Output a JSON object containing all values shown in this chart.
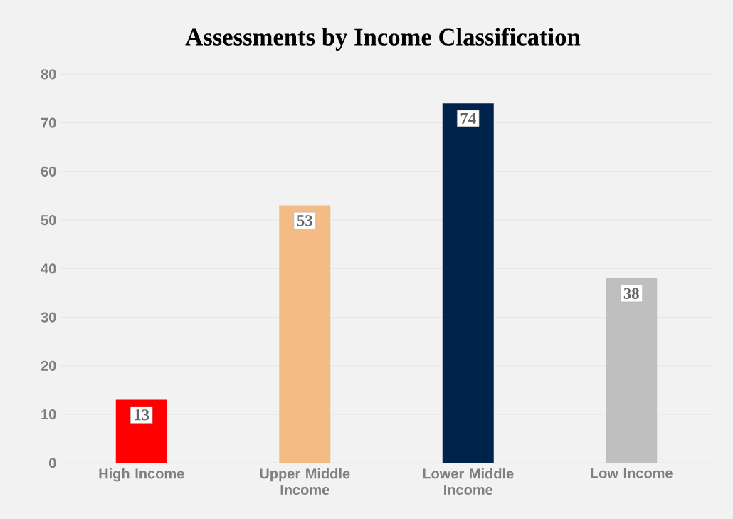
{
  "chart_data": {
    "type": "bar",
    "title": "Assessments by Income Classification",
    "categories": [
      "High Income",
      "Upper Middle Income",
      "Lower Middle Income",
      "Low Income"
    ],
    "values": [
      13,
      53,
      74,
      38
    ],
    "colors": [
      "#ff0000",
      "#f4bc84",
      "#00234b",
      "#bfbfbf"
    ],
    "ylim": [
      0,
      80
    ],
    "yticks": [
      0,
      10,
      20,
      30,
      40,
      50,
      60,
      70,
      80
    ],
    "grid": "y",
    "data_labels": true
  }
}
